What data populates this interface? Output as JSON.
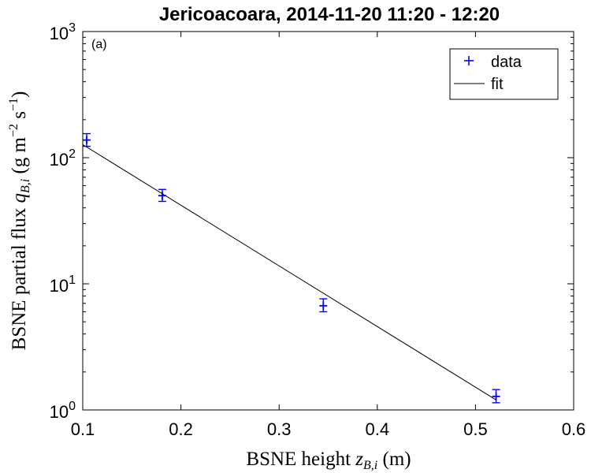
{
  "chart_data": {
    "type": "scatter",
    "title": "Jericoacoara, 2014-11-20 11:20 - 12:20",
    "panel_label": "(a)",
    "xlabel": {
      "text": "BSNE height ",
      "math": "z",
      "sub": "B,i",
      "unit": " (m)"
    },
    "ylabel": {
      "text": "BSNE partial flux ",
      "math": "q",
      "sub": "B,i",
      "unit_open": " (g m",
      "exp1": "−2",
      "unit_mid": " s",
      "exp2": "−1",
      "unit_close": ")"
    },
    "xlim": [
      0.1,
      0.6
    ],
    "ylim": [
      1,
      1000
    ],
    "yscale": "log",
    "xticks": [
      {
        "value": 0.1,
        "label": "0.1"
      },
      {
        "value": 0.2,
        "label": "0.2"
      },
      {
        "value": 0.3,
        "label": "0.3"
      },
      {
        "value": 0.4,
        "label": "0.4"
      },
      {
        "value": 0.5,
        "label": "0.5"
      },
      {
        "value": 0.6,
        "label": "0.6"
      }
    ],
    "yticks": [
      {
        "value": 1,
        "base": "10",
        "exp": "0"
      },
      {
        "value": 10,
        "base": "10",
        "exp": "1"
      },
      {
        "value": 100,
        "base": "10",
        "exp": "2"
      },
      {
        "value": 1000,
        "base": "10",
        "exp": "3"
      }
    ],
    "grid": false,
    "legend": {
      "position": "top-right",
      "entries": [
        {
          "label": "data",
          "marker": "plus",
          "color": "#0000ff"
        },
        {
          "label": "fit",
          "marker": "line",
          "color": "#000000"
        }
      ]
    },
    "series": [
      {
        "name": "data",
        "type": "scatter",
        "color": "#0000ff",
        "points": [
          {
            "x": 0.104,
            "y": 138,
            "ylow": 123,
            "yhigh": 155
          },
          {
            "x": 0.181,
            "y": 50,
            "ylow": 45,
            "yhigh": 56
          },
          {
            "x": 0.345,
            "y": 6.7,
            "ylow": 6.0,
            "yhigh": 7.6
          },
          {
            "x": 0.521,
            "y": 1.28,
            "ylow": 1.14,
            "yhigh": 1.45
          }
        ]
      },
      {
        "name": "fit",
        "type": "line",
        "color": "#000000",
        "x": [
          0.1,
          0.521
        ],
        "y": [
          127,
          1.2
        ]
      }
    ]
  }
}
